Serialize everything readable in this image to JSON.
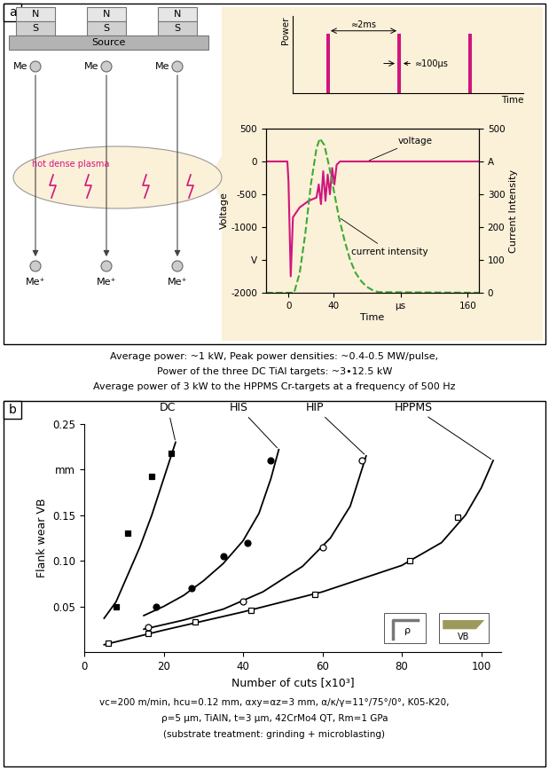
{
  "panel_labels": [
    "a",
    "b"
  ],
  "diagram": {
    "magnets": [
      {
        "top": "N",
        "bottom": "S"
      },
      {
        "top": "N",
        "bottom": "S"
      },
      {
        "top": "N",
        "bottom": "S"
      }
    ],
    "source": "Source",
    "atoms": [
      "Me",
      "Me",
      "Me"
    ],
    "ions": [
      "Me⁺",
      "Me⁺",
      "Me⁺"
    ],
    "plasma": "hot dense plasma"
  },
  "captions_a": [
    "Average power: ~1 kW, Peak power densities: ~0.4-0.5 MW/pulse,",
    "Power of the three DC TiAl targets: ~3•12.5 kW",
    "Average power of 3 kW to the HPPMS Cr-targets at a frequency of 500 Hz"
  ],
  "chart_data": [
    {
      "type": "bar",
      "xlabel": "Time",
      "ylabel": "Power",
      "x": [
        1,
        3,
        5
      ],
      "values": [
        1,
        1,
        1
      ],
      "pulse_width": 0.1,
      "color": "#d0157e",
      "xlim": [
        0,
        6.5
      ],
      "ylim": [
        0,
        1.3
      ],
      "tick_labels": false,
      "annotations": [
        "≈2ms",
        "≈100µs"
      ]
    },
    {
      "type": "line",
      "xlabel": "Time",
      "ylabel": "Voltage",
      "y2label": "Current Intensity",
      "xlim": [
        -20,
        170
      ],
      "ylim": [
        -2000,
        500
      ],
      "y2lim": [
        0,
        500
      ],
      "xticks": [
        0,
        40,
        {
          "value": 100,
          "label": "µs"
        },
        160
      ],
      "yticks": [
        500,
        0,
        -500,
        -1000,
        {
          "value": -1500,
          "label": "V"
        },
        -2000
      ],
      "y2ticks": [
        500,
        {
          "value": 400,
          "label": "A"
        },
        300,
        200,
        100,
        0
      ],
      "series": [
        {
          "name": "voltage",
          "color": "#d0157e",
          "line_style": "solid",
          "x": [
            -20,
            -1,
            0,
            2,
            4,
            10,
            18,
            25,
            27,
            29,
            31,
            33,
            35,
            37,
            39,
            41,
            43,
            46,
            50,
            170
          ],
          "values": [
            0,
            0,
            -300,
            -1750,
            -850,
            -700,
            -600,
            -550,
            -350,
            -650,
            -150,
            -600,
            -200,
            -500,
            -100,
            -350,
            -50,
            0,
            0,
            0
          ]
        },
        {
          "name": "current intensity",
          "color": "#3aaa35",
          "line_style": "dashed",
          "axis": "y2",
          "x": [
            -20,
            5,
            10,
            15,
            20,
            25,
            28,
            32,
            36,
            40,
            45,
            50,
            55,
            60,
            65,
            70,
            75,
            80,
            170
          ],
          "values": [
            0,
            0,
            60,
            180,
            330,
            440,
            470,
            450,
            390,
            320,
            230,
            160,
            100,
            60,
            35,
            18,
            8,
            2,
            0
          ]
        }
      ]
    },
    {
      "type": "line",
      "xlabel": "Number of cuts [x10³]",
      "ylabel": "Flank wear VB",
      "xlim": [
        0,
        105
      ],
      "ylim": [
        0,
        0.25
      ],
      "xticks": [
        0,
        20,
        40,
        60,
        80,
        100
      ],
      "yticks": [
        0.05,
        {
          "value": 0.1,
          "label": "0.10"
        },
        0.15,
        {
          "value": 0.2,
          "label": "mm"
        },
        0.25
      ],
      "insets": [
        "ρ",
        "VB"
      ],
      "series": [
        {
          "name": "DC",
          "color": "#000000",
          "marker": "square",
          "x": [
            8,
            11,
            17,
            22
          ],
          "values": [
            0.05,
            0.13,
            0.193,
            0.218
          ],
          "trend_x": [
            5,
            8,
            11,
            14,
            17,
            20,
            23
          ],
          "trend_values": [
            0.037,
            0.055,
            0.085,
            0.115,
            0.15,
            0.19,
            0.23
          ]
        },
        {
          "name": "HIS",
          "color": "#000000",
          "marker": "circle",
          "x": [
            18,
            27,
            35,
            41,
            47
          ],
          "values": [
            0.05,
            0.07,
            0.105,
            0.12,
            0.21
          ],
          "trend_x": [
            15,
            20,
            25,
            30,
            35,
            40,
            44,
            47,
            49
          ],
          "trend_values": [
            0.04,
            0.05,
            0.062,
            0.078,
            0.097,
            0.122,
            0.152,
            0.19,
            0.222
          ]
        },
        {
          "name": "HIP",
          "color": "#000000",
          "marker": "open_circle",
          "x": [
            16,
            40,
            60,
            70
          ],
          "values": [
            0.027,
            0.055,
            0.115,
            0.21
          ],
          "trend_x": [
            15,
            25,
            35,
            45,
            55,
            62,
            67,
            71
          ],
          "trend_values": [
            0.025,
            0.035,
            0.047,
            0.066,
            0.094,
            0.125,
            0.16,
            0.215
          ]
        },
        {
          "name": "HPPMS",
          "color": "#000000",
          "marker": "open_square",
          "x": [
            6,
            16,
            28,
            42,
            58,
            82,
            94
          ],
          "values": [
            0.01,
            0.02,
            0.033,
            0.046,
            0.063,
            0.1,
            0.148
          ],
          "trend_x": [
            5,
            20,
            40,
            60,
            80,
            90,
            96,
            100,
            103
          ],
          "trend_values": [
            0.008,
            0.024,
            0.044,
            0.066,
            0.095,
            0.12,
            0.15,
            0.18,
            0.21
          ]
        }
      ]
    }
  ],
  "captions_b": [
    "vc=200 m/min, hcu=0.12 mm, αxy=αz=3 mm, α/κ/γ=11°/75°/0°, K05-K20,",
    "ρ=5 µm, TiAlN, t=3 µm, 42CrMo4 QT, Rm=1 GPa",
    "(substrate treatment: grinding + microblasting)"
  ]
}
